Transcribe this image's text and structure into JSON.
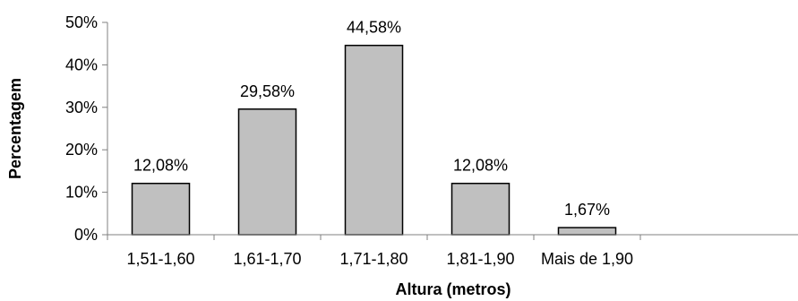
{
  "chart_data": {
    "type": "bar",
    "categories": [
      "1,51-1,60",
      "1,61-1,70",
      "1,71-1,80",
      "1,81-1,90",
      "Mais de 1,90"
    ],
    "values": [
      12.08,
      29.58,
      44.58,
      12.08,
      1.67
    ],
    "data_labels": [
      "12,08%",
      "29,58%",
      "44,58%",
      "12,08%",
      "1,67%"
    ],
    "title": "",
    "xlabel": "Altura (metros)",
    "ylabel": "Percentagem",
    "ylim": [
      0,
      50
    ],
    "yticks": [
      0,
      10,
      20,
      30,
      40,
      50
    ],
    "ytick_labels": [
      "0%",
      "10%",
      "20%",
      "30%",
      "40%",
      "50%"
    ],
    "grid": false,
    "legend": "none",
    "colors": {
      "bar_fill": "#c0c0c0",
      "bar_stroke": "#000000",
      "axis": "#808080"
    }
  }
}
